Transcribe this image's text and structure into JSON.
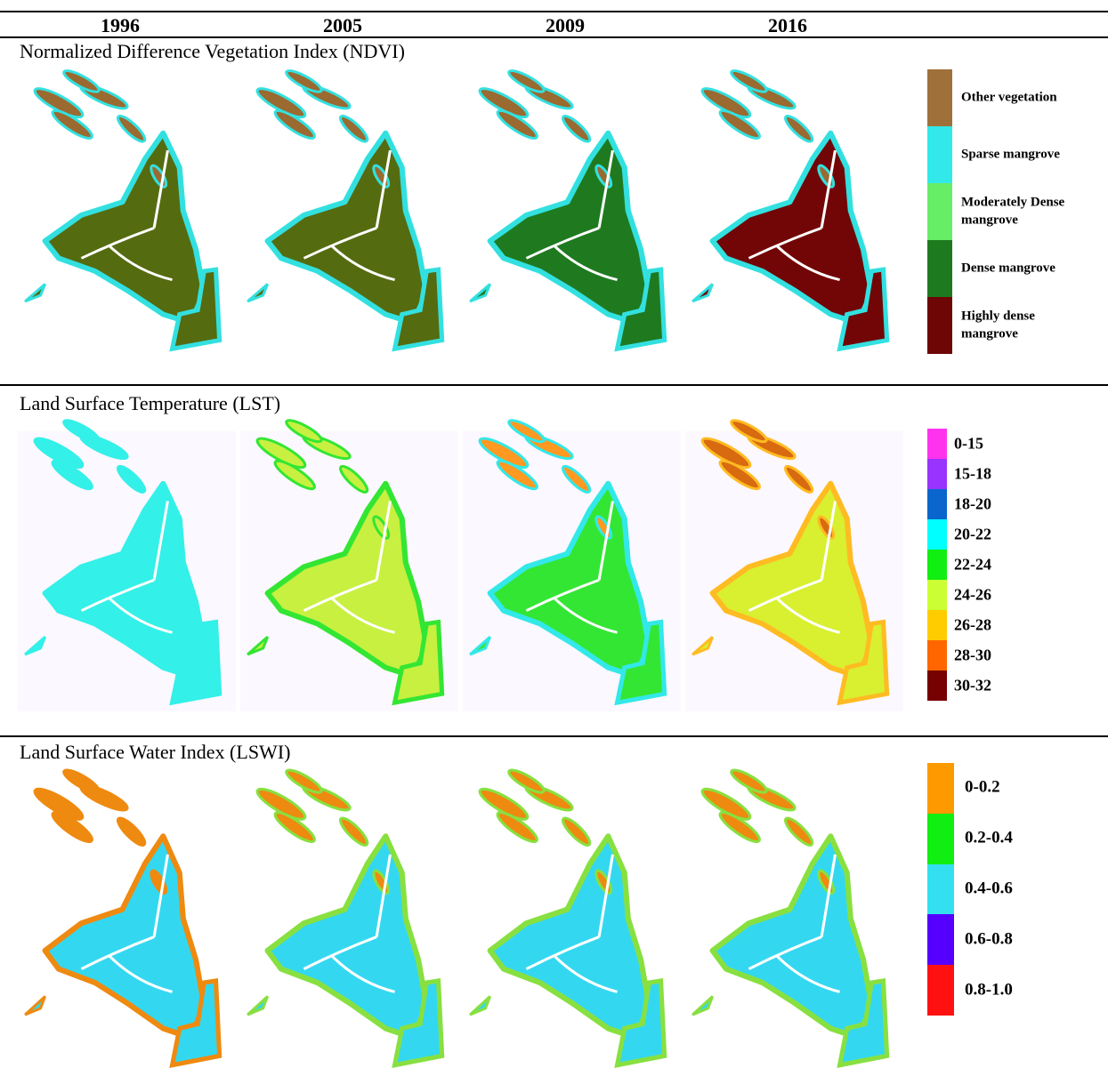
{
  "header": {
    "years": [
      "1996",
      "2005",
      "2009",
      "2016"
    ]
  },
  "sections": [
    {
      "title": "Normalized Difference Vegetation Index (NDVI)",
      "legend": [
        {
          "label": "Other vegetation",
          "color": "#a0703a"
        },
        {
          "label": "Sparse mangrove",
          "color": "#33e8e8"
        },
        {
          "label": "Moderately Dense mangrove",
          "color": "#66ee66"
        },
        {
          "label": "Dense mangrove",
          "color": "#1e7a1e"
        },
        {
          "label": "Highly dense mangrove",
          "color": "#6e0606"
        }
      ]
    },
    {
      "title": "Land Surface Temperature (LST)",
      "legend": [
        {
          "label": "0-15",
          "color": "#ff33ee"
        },
        {
          "label": "15-18",
          "color": "#9933ff"
        },
        {
          "label": "18-20",
          "color": "#0a66cc"
        },
        {
          "label": "20-22",
          "color": "#00ffff"
        },
        {
          "label": "22-24",
          "color": "#11ee11"
        },
        {
          "label": "24-26",
          "color": "#ccff33"
        },
        {
          "label": "26-28",
          "color": "#ffcc00"
        },
        {
          "label": "28-30",
          "color": "#ff6600"
        },
        {
          "label": "30-32",
          "color": "#770000"
        }
      ]
    },
    {
      "title": "Land Surface Water Index (LSWI)",
      "legend": [
        {
          "label": "0-0.2",
          "color": "#ff9900"
        },
        {
          "label": "0.2-0.4",
          "color": "#11ee11"
        },
        {
          "label": "0.4-0.6",
          "color": "#33e0f0"
        },
        {
          "label": "0.6-0.8",
          "color": "#5500ff"
        },
        {
          "label": "0.8-1.0",
          "color": "#ff1111"
        }
      ]
    }
  ]
}
